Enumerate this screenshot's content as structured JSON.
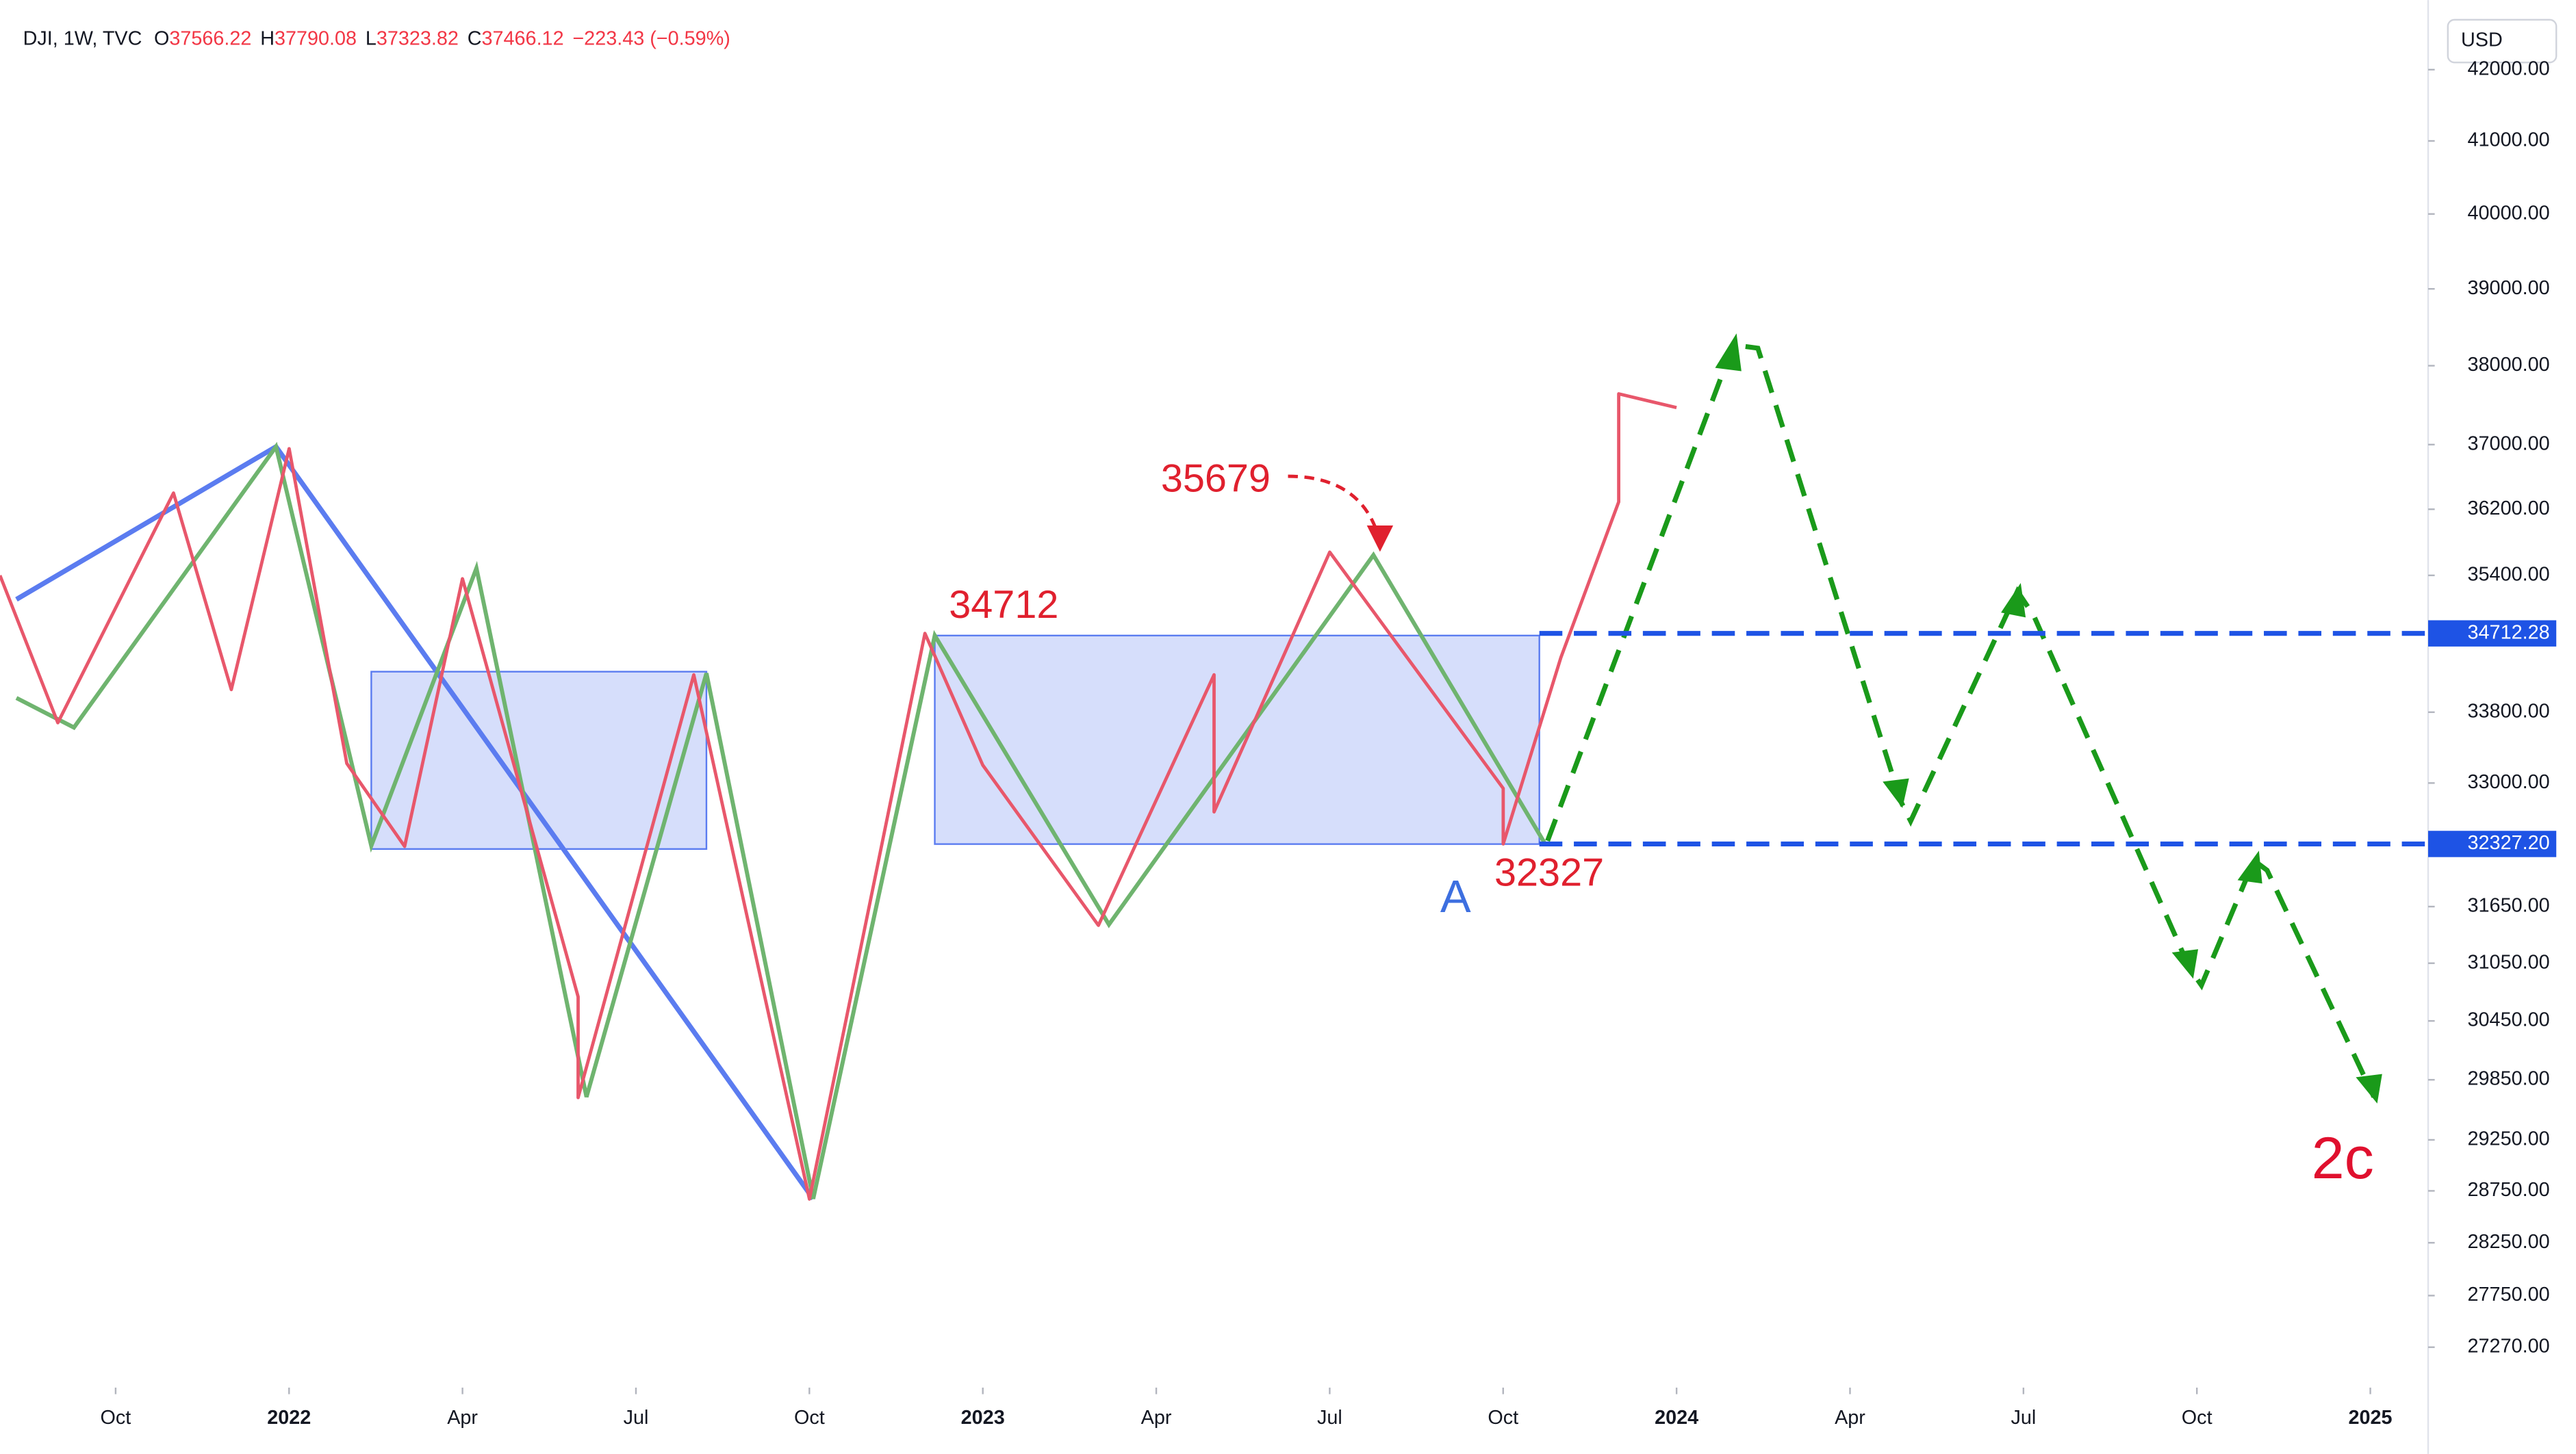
{
  "header": {
    "symbol": "DJI, 1W, TVC",
    "open_label": "O",
    "open": 37566.22,
    "high_label": "H",
    "high": 37790.08,
    "low_label": "L",
    "low": 37323.82,
    "close_label": "C",
    "close": 37466.12,
    "change": "−223.43 (−0.59%)",
    "currency": "USD"
  },
  "chart_data": {
    "type": "line",
    "log_scale": true,
    "color": "#e8576b",
    "x": [
      "2021-08",
      "2021-09",
      "2021-11",
      "2021-12",
      "2022-01",
      "2022-02",
      "2022-03",
      "2022-04",
      "2022-06",
      "2022-06",
      "2022-08",
      "2022-10",
      "2022-12",
      "2023-01",
      "2023-03",
      "2023-05",
      "2023-05",
      "2023-07",
      "2023-10",
      "2023-10",
      "2023-11",
      "2023-12",
      "2023-12",
      "2024-01"
    ],
    "values": [
      35400,
      33680,
      36400,
      34060,
      36950,
      33220,
      32300,
      35360,
      30700,
      29670,
      34230,
      28670,
      34712,
      33200,
      31450,
      34230,
      32680,
      35679,
      32940,
      32327,
      34430,
      36290,
      37640,
      37466
    ],
    "xlim": [
      "2021-08",
      "2025-02"
    ],
    "xticks": [
      {
        "value": "2021-10",
        "label": "Oct"
      },
      {
        "value": "2022-01",
        "label": "2022"
      },
      {
        "value": "2022-04",
        "label": "Apr"
      },
      {
        "value": "2022-07",
        "label": "Jul"
      },
      {
        "value": "2022-10",
        "label": "Oct"
      },
      {
        "value": "2023-01",
        "label": "2023"
      },
      {
        "value": "2023-04",
        "label": "Apr"
      },
      {
        "value": "2023-07",
        "label": "Jul"
      },
      {
        "value": "2023-10",
        "label": "Oct"
      },
      {
        "value": "2024-01",
        "label": "2024"
      },
      {
        "value": "2024-04",
        "label": "Apr"
      },
      {
        "value": "2024-07",
        "label": "Jul"
      },
      {
        "value": "2024-10",
        "label": "Oct"
      },
      {
        "value": "2025-01",
        "label": "2025"
      }
    ],
    "ylim": [
      26900,
      43000
    ],
    "yticks": [
      {
        "value": 42000,
        "label": "42000.00"
      },
      {
        "value": 41000,
        "label": "41000.00"
      },
      {
        "value": 40000,
        "label": "40000.00"
      },
      {
        "value": 39000,
        "label": "39000.00"
      },
      {
        "value": 38000,
        "label": "38000.00"
      },
      {
        "value": 37000,
        "label": "37000.00"
      },
      {
        "value": 36200,
        "label": "36200.00"
      },
      {
        "value": 35400,
        "label": "35400.00"
      },
      {
        "value": 33800,
        "label": "33800.00"
      },
      {
        "value": 33000,
        "label": "33000.00"
      },
      {
        "value": 31650,
        "label": "31650.00"
      },
      {
        "value": 31050,
        "label": "31050.00"
      },
      {
        "value": 30450,
        "label": "30450.00"
      },
      {
        "value": 29850,
        "label": "29850.00"
      },
      {
        "value": 29250,
        "label": "29250.00"
      },
      {
        "value": 28750,
        "label": "28750.00"
      },
      {
        "value": 28250,
        "label": "28250.00"
      },
      {
        "value": 27750,
        "label": "27750.00"
      },
      {
        "value": 27270,
        "label": "27270.00"
      }
    ],
    "levels": [
      34712.28,
      {
        "value": 32327.2,
        "label": "32327.20"
      }
    ],
    "level_color": "#1e53e5",
    "annotations": [
      "35679",
      "34712",
      "32327",
      "A",
      "2c"
    ]
  }
}
